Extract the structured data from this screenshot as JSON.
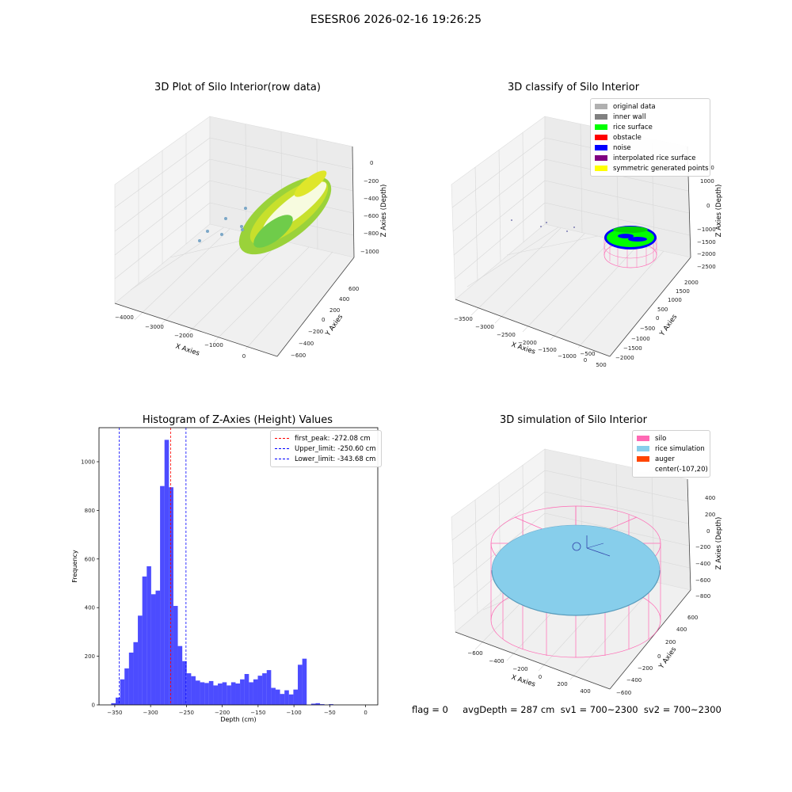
{
  "figure": {
    "suptitle": "ESESR06 2026-02-16 19:26:25",
    "footer": "flag = 0     avgDepth = 287 cm  sv1 = 700~2300  sv2 = 700~2300"
  },
  "panels": {
    "raw": {
      "title": "3D Plot of Silo Interior(row data)",
      "xlabel": "X Axies",
      "ylabel": "Y Axies",
      "zlabel": "Z Axies (Depth)",
      "xticks": [
        "−4000",
        "−3000",
        "−2000",
        "−1000",
        "0"
      ],
      "yticks": [
        "−600",
        "−400",
        "−200",
        "0",
        "200",
        "400",
        "600"
      ],
      "zticks": [
        "0",
        "−200",
        "−400",
        "−600",
        "−800",
        "−1000"
      ]
    },
    "classify": {
      "title": "3D classify of Silo Interior",
      "xlabel": "X Axies",
      "ylabel": "Y Axies",
      "zlabel": "Z Axies (Depth)",
      "xticks": [
        "−3500",
        "−3000",
        "−2500",
        "−2000",
        "−1500",
        "−1000",
        "−500",
        "0",
        "500"
      ],
      "yticks": [
        "−2000",
        "−1500",
        "−1000",
        "−500",
        "0",
        "500",
        "1000",
        "1500",
        "2000"
      ],
      "zticks": [
        "2000",
        "1000",
        "0",
        "−1000",
        "−1500",
        "−2000",
        "−2500"
      ],
      "legend": [
        {
          "label": "original data",
          "color": "#b0b0b0"
        },
        {
          "label": "inner wall",
          "color": "#808080"
        },
        {
          "label": "rice surface",
          "color": "#00ff00"
        },
        {
          "label": "obstacle",
          "color": "#ff0000"
        },
        {
          "label": "noise",
          "color": "#0000ff"
        },
        {
          "label": "interpolated rice surface",
          "color": "#800080"
        },
        {
          "label": "symmetric generated points",
          "color": "#ffff00"
        }
      ]
    },
    "histogram": {
      "title": "Histogram of Z-Axies (Height) Values",
      "legend": [
        {
          "label": "first_peak: -272.08 cm",
          "color": "#ff0000"
        },
        {
          "label": "Upper_limit: -250.60 cm",
          "color": "#0000ff"
        },
        {
          "label": "Lower_limit: -343.68 cm",
          "color": "#0000ff"
        }
      ]
    },
    "simulation": {
      "title": "3D simulation of Silo Interior",
      "xlabel": "X Axies",
      "ylabel": "Y Axies",
      "zlabel": "Z Axies (Depth)",
      "xticks": [
        "−600",
        "−400",
        "−200",
        "0",
        "200",
        "400"
      ],
      "yticks": [
        "−600",
        "−400",
        "−200",
        "0",
        "200",
        "400",
        "600"
      ],
      "zticks": [
        "400",
        "200",
        "0",
        "−200",
        "−400",
        "−600",
        "−800"
      ],
      "legend": [
        {
          "label": "silo",
          "color": "#ff69b4"
        },
        {
          "label": "rice simulation",
          "color": "#87ceeb"
        },
        {
          "label": "auger",
          "color": "#ff4500"
        },
        {
          "label": "center(-107,20)",
          "color": "#ffffff"
        }
      ]
    }
  },
  "chart_data": [
    {
      "type": "bar",
      "title": "Histogram of Z-Axies (Height) Values",
      "xlabel": "Depth (cm)",
      "ylabel": "Frequency",
      "xlim": [
        -372,
        17
      ],
      "ylim": [
        0,
        1140
      ],
      "xticks": [
        -350,
        -300,
        -250,
        -200,
        -150,
        -100,
        -50,
        0
      ],
      "yticks": [
        0,
        200,
        400,
        600,
        800,
        1000
      ],
      "bar_color": "#0000ff",
      "bin_width": 6.2,
      "bin_start": -355,
      "values": [
        7,
        30,
        105,
        150,
        215,
        258,
        367,
        528,
        570,
        455,
        470,
        900,
        1090,
        895,
        407,
        242,
        180,
        130,
        118,
        100,
        93,
        90,
        98,
        80,
        88,
        93,
        80,
        93,
        88,
        105,
        127,
        93,
        105,
        120,
        130,
        143,
        70,
        63,
        45,
        60,
        43,
        63,
        165,
        190,
        0,
        5,
        7,
        3,
        0,
        3,
        0
      ],
      "vlines": [
        {
          "x": -272.08,
          "color": "#ff0000",
          "label": "first_peak: -272.08 cm"
        },
        {
          "x": -250.6,
          "color": "#0000ff",
          "label": "Upper_limit: -250.60 cm"
        },
        {
          "x": -343.68,
          "color": "#0000ff",
          "label": "Lower_limit: -343.68 cm"
        }
      ],
      "legend_position": "upper right"
    }
  ]
}
